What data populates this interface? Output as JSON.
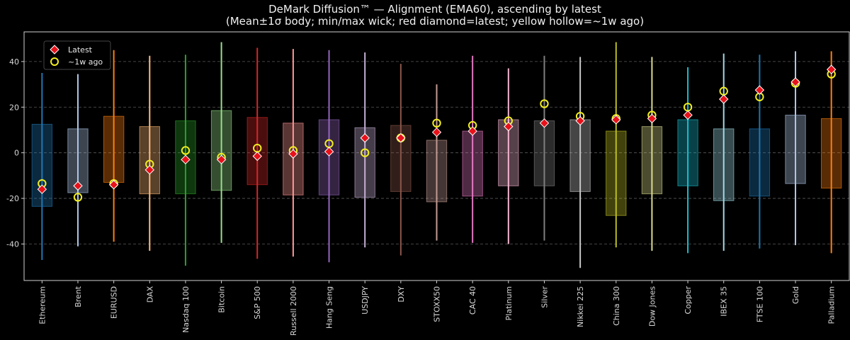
{
  "chart_data": {
    "type": "box-range",
    "title": "DeMark Diffusion™ — Alignment (EMA60), ascending by latest",
    "subtitle": "(Mean±1σ body; min/max wick; red diamond=latest; yellow hollow=~1w ago)",
    "ylim": [
      -56,
      53
    ],
    "yticks": [
      -40,
      -20,
      0,
      20,
      40
    ],
    "grid": "horizontal-dashed",
    "legend": {
      "position": "top-left",
      "latest_label": "Latest",
      "week_label": "~1w ago"
    },
    "colors": {
      "latest_marker": "#e8111a",
      "week_marker": "#f2ee1f",
      "background": "#000000"
    },
    "categories": [
      "Ethereum",
      "Brent",
      "EURUSD",
      "DAX",
      "Nasdaq 100",
      "Bitcoin",
      "S&P 500",
      "Russell 2000",
      "Hang Seng",
      "USDJPY",
      "DXY",
      "STOXX50",
      "CAC 40",
      "Platinum",
      "Silver",
      "Nikkei 225",
      "China 300",
      "Dow Jones",
      "Copper",
      "IBEX 35",
      "FTSE 100",
      "Gold",
      "Palladium"
    ],
    "series": [
      {
        "min": -47,
        "max": 35,
        "low": -23.5,
        "high": 12.5,
        "latest": -16,
        "week": -13.5,
        "color": "#1f77b4"
      },
      {
        "min": -41,
        "max": 34.5,
        "low": -17.5,
        "high": 10.5,
        "latest": -14.5,
        "week": -19.5,
        "color": "#aec7e8"
      },
      {
        "min": -39,
        "max": 45,
        "low": -13,
        "high": 16,
        "latest": -14,
        "week": -13.5,
        "color": "#ff7f0e"
      },
      {
        "min": -43,
        "max": 42.5,
        "low": -18,
        "high": 11.5,
        "latest": -7.5,
        "week": -5,
        "color": "#ffbb78"
      },
      {
        "min": -49.5,
        "max": 43,
        "low": -18,
        "high": 14,
        "latest": -3,
        "week": 1,
        "color": "#2ca02c"
      },
      {
        "min": -39.5,
        "max": 48.5,
        "low": -16.5,
        "high": 18.5,
        "latest": -3,
        "week": -2,
        "color": "#98df8a"
      },
      {
        "min": -46.5,
        "max": 46,
        "low": -14,
        "high": 15.5,
        "latest": -1.5,
        "week": 2,
        "color": "#d62728"
      },
      {
        "min": -45.5,
        "max": 45.5,
        "low": -18.5,
        "high": 13,
        "latest": -0.5,
        "week": 1,
        "color": "#ff9896"
      },
      {
        "min": -48,
        "max": 45,
        "low": -18.5,
        "high": 14.5,
        "latest": 0.5,
        "week": 4,
        "color": "#9467bd"
      },
      {
        "min": -41.5,
        "max": 44,
        "low": -19.5,
        "high": 11,
        "latest": 6.5,
        "week": 0,
        "color": "#c5b0d5"
      },
      {
        "min": -45,
        "max": 39,
        "low": -17,
        "high": 12,
        "latest": 6.5,
        "week": 6.5,
        "color": "#8c564b"
      },
      {
        "min": -38.5,
        "max": 30,
        "low": -21.5,
        "high": 5.5,
        "latest": 9,
        "week": 13,
        "color": "#c49c94"
      },
      {
        "min": -39.5,
        "max": 42.5,
        "low": -19,
        "high": 9.5,
        "latest": 9.5,
        "week": 12,
        "color": "#e377c2"
      },
      {
        "min": -40,
        "max": 37,
        "low": -14.5,
        "high": 14.5,
        "latest": 11.5,
        "week": 14,
        "color": "#f7b6d2"
      },
      {
        "min": -38.5,
        "max": 42.5,
        "low": -14.5,
        "high": 14,
        "latest": 13,
        "week": 21.5,
        "color": "#7f7f7f"
      },
      {
        "min": -50.5,
        "max": 42,
        "low": -17,
        "high": 14.5,
        "latest": 14,
        "week": 16,
        "color": "#c7c7c7"
      },
      {
        "min": -41.5,
        "max": 48.5,
        "low": -27.5,
        "high": 9.5,
        "latest": 14.5,
        "week": 15,
        "color": "#bcbd22"
      },
      {
        "min": -43,
        "max": 42,
        "low": -18,
        "high": 11.5,
        "latest": 15,
        "week": 16.5,
        "color": "#dbdb8d"
      },
      {
        "min": -44,
        "max": 37.5,
        "low": -14.5,
        "high": 14.5,
        "latest": 16.5,
        "week": 20,
        "color": "#17becf"
      },
      {
        "min": -43,
        "max": 43.5,
        "low": -21,
        "high": 10.5,
        "latest": 23.5,
        "week": 27,
        "color": "#9edae5"
      },
      {
        "min": -42,
        "max": 43,
        "low": -19,
        "high": 10.5,
        "latest": 27.5,
        "week": 24.5,
        "color": "#1f77b4"
      },
      {
        "min": -40.5,
        "max": 44.5,
        "low": -13.5,
        "high": 16.5,
        "latest": 31,
        "week": 30.5,
        "color": "#aec7e8"
      },
      {
        "min": -44,
        "max": 44.5,
        "low": -15.5,
        "high": 15,
        "latest": 36.5,
        "week": 34.5,
        "color": "#ff7f0e"
      }
    ]
  }
}
